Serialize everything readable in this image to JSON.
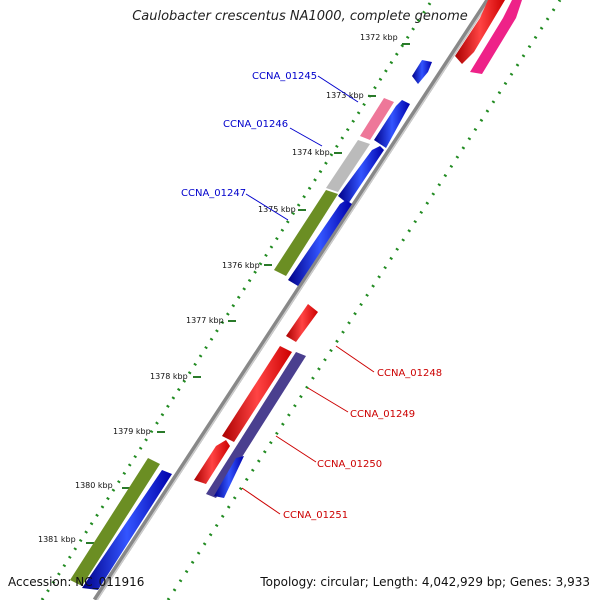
{
  "title": "Caulobacter crescentus NA1000, complete genome",
  "footer": {
    "accession": "Accession: NC_011916",
    "summary": "Topology: circular; Length: 4,042,929 bp; Genes: 3,933"
  },
  "ticks": [
    "1372 kbp",
    "1373 kbp",
    "1374 kbp",
    "1375 kbp",
    "1376 kbp",
    "1377 kbp",
    "1378 kbp",
    "1379 kbp",
    "1380 kbp",
    "1381 kbp"
  ],
  "gene_labels_top": [
    "CCNA_01245",
    "CCNA_01246",
    "CCNA_01247"
  ],
  "gene_labels_bottom": [
    "CCNA_01248",
    "CCNA_01249",
    "CCNA_01250",
    "CCNA_01251"
  ],
  "colors": {
    "forward": "#0000ee",
    "reverse": "#ee0000",
    "olive": "#6b8e23",
    "pink": "#ee7799",
    "gray": "#bbbbbb",
    "slate": "#4a3f8f",
    "magenta": "#ee2288",
    "backbone": "#888888",
    "dots": "#228b22"
  }
}
